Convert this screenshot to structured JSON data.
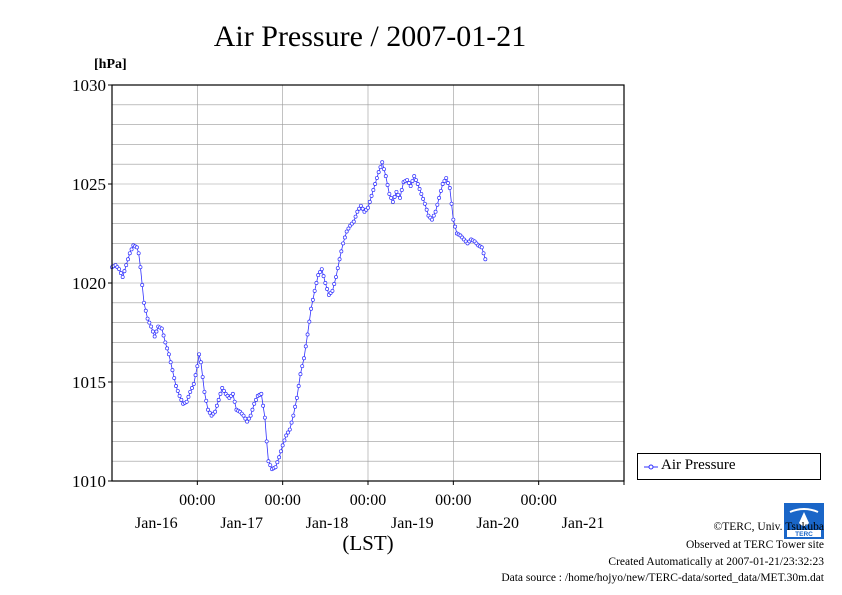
{
  "chart_data": {
    "type": "line",
    "title": "Air Pressure / 2007-01-21",
    "ylabel": "[hPa]",
    "xlabel": "(LST)",
    "ylim": [
      1010,
      1030
    ],
    "yticks": [
      1010,
      1015,
      1020,
      1025,
      1030
    ],
    "x_unit": "hours since Jan-15 00:00 LST",
    "xlim": [
      12,
      156
    ],
    "xticks": [
      {
        "t": 36,
        "time": "00:00",
        "date": "Jan-16"
      },
      {
        "t": 60,
        "time": "00:00",
        "date": "Jan-17"
      },
      {
        "t": 84,
        "time": "00:00",
        "date": "Jan-18"
      },
      {
        "t": 108,
        "time": "00:00",
        "date": "Jan-19"
      },
      {
        "t": 132,
        "time": "00:00",
        "date": "Jan-20"
      },
      {
        "t": 156,
        "time": "",
        "date": "Jan-21"
      }
    ],
    "grid": true,
    "legend_position": "right",
    "series": [
      {
        "name": "Air Pressure",
        "color": "#3030ff",
        "marker": "circle",
        "interval_hours": 0.5,
        "points": [
          [
            12,
            1020.8
          ],
          [
            13,
            1020.9
          ],
          [
            14,
            1020.7
          ],
          [
            15,
            1020.3
          ],
          [
            16,
            1020.9
          ],
          [
            17,
            1021.5
          ],
          [
            18,
            1021.9
          ],
          [
            19,
            1021.8
          ],
          [
            19.5,
            1021.5
          ],
          [
            20,
            1020.8
          ],
          [
            21,
            1019.0
          ],
          [
            22,
            1018.2
          ],
          [
            23,
            1017.8
          ],
          [
            24,
            1017.3
          ],
          [
            25,
            1017.8
          ],
          [
            26,
            1017.7
          ],
          [
            27,
            1017.0
          ],
          [
            28,
            1016.4
          ],
          [
            29,
            1015.6
          ],
          [
            30,
            1014.8
          ],
          [
            31,
            1014.3
          ],
          [
            32,
            1013.9
          ],
          [
            33,
            1014.0
          ],
          [
            34,
            1014.5
          ],
          [
            35,
            1014.9
          ],
          [
            36,
            1015.8
          ],
          [
            36.5,
            1016.4
          ],
          [
            37,
            1016.0
          ],
          [
            38,
            1014.5
          ],
          [
            39,
            1013.6
          ],
          [
            40,
            1013.3
          ],
          [
            41,
            1013.5
          ],
          [
            42,
            1014.1
          ],
          [
            43,
            1014.7
          ],
          [
            44,
            1014.4
          ],
          [
            45,
            1014.2
          ],
          [
            46,
            1014.4
          ],
          [
            47,
            1013.6
          ],
          [
            48,
            1013.5
          ],
          [
            49,
            1013.3
          ],
          [
            50,
            1013.0
          ],
          [
            51,
            1013.3
          ],
          [
            52,
            1013.9
          ],
          [
            53,
            1014.3
          ],
          [
            54,
            1014.4
          ],
          [
            55,
            1013.2
          ],
          [
            55.5,
            1012.0
          ],
          [
            56,
            1011.0
          ],
          [
            57,
            1010.6
          ],
          [
            58,
            1010.7
          ],
          [
            59,
            1011.2
          ],
          [
            60,
            1011.8
          ],
          [
            61,
            1012.3
          ],
          [
            62,
            1012.6
          ],
          [
            63,
            1013.3
          ],
          [
            64,
            1014.2
          ],
          [
            65,
            1015.4
          ],
          [
            66,
            1016.2
          ],
          [
            67,
            1017.4
          ],
          [
            68,
            1018.7
          ],
          [
            69,
            1019.6
          ],
          [
            70,
            1020.4
          ],
          [
            71,
            1020.7
          ],
          [
            72,
            1020.0
          ],
          [
            73,
            1019.4
          ],
          [
            74,
            1019.6
          ],
          [
            75,
            1020.3
          ],
          [
            76,
            1021.2
          ],
          [
            77,
            1022.0
          ],
          [
            78,
            1022.6
          ],
          [
            79,
            1022.9
          ],
          [
            80,
            1023.1
          ],
          [
            81,
            1023.6
          ],
          [
            82,
            1023.9
          ],
          [
            83,
            1023.6
          ],
          [
            84,
            1023.8
          ],
          [
            85,
            1024.4
          ],
          [
            86,
            1025.0
          ],
          [
            87,
            1025.6
          ],
          [
            88,
            1026.1
          ],
          [
            89,
            1025.4
          ],
          [
            90,
            1024.5
          ],
          [
            91,
            1024.1
          ],
          [
            92,
            1024.6
          ],
          [
            93,
            1024.3
          ],
          [
            94,
            1025.1
          ],
          [
            95,
            1025.2
          ],
          [
            96,
            1024.9
          ],
          [
            97,
            1025.4
          ],
          [
            98,
            1025.0
          ],
          [
            99,
            1024.5
          ],
          [
            100,
            1024.0
          ],
          [
            101,
            1023.4
          ],
          [
            102,
            1023.2
          ],
          [
            103,
            1023.6
          ],
          [
            104,
            1024.3
          ],
          [
            105,
            1025.0
          ],
          [
            106,
            1025.3
          ],
          [
            107,
            1024.8
          ],
          [
            108,
            1023.2
          ],
          [
            109,
            1022.5
          ],
          [
            110,
            1022.4
          ],
          [
            111,
            1022.2
          ],
          [
            112,
            1022.0
          ],
          [
            113,
            1022.2
          ],
          [
            114,
            1022.1
          ],
          [
            115,
            1021.9
          ],
          [
            116,
            1021.8
          ],
          [
            117,
            1021.2
          ]
        ]
      }
    ]
  },
  "legend": {
    "label": "Air Pressure"
  },
  "credits": {
    "copyright": "©TERC, Univ. Tsukuba",
    "observed": "Observed at TERC Tower site",
    "created": "Created Automatically at 2007-01-21/23:32:23",
    "source": "Data source : /home/hojyo/new/TERC-data/sorted_data/MET.30m.dat"
  },
  "logo": {
    "text": "TERC"
  }
}
